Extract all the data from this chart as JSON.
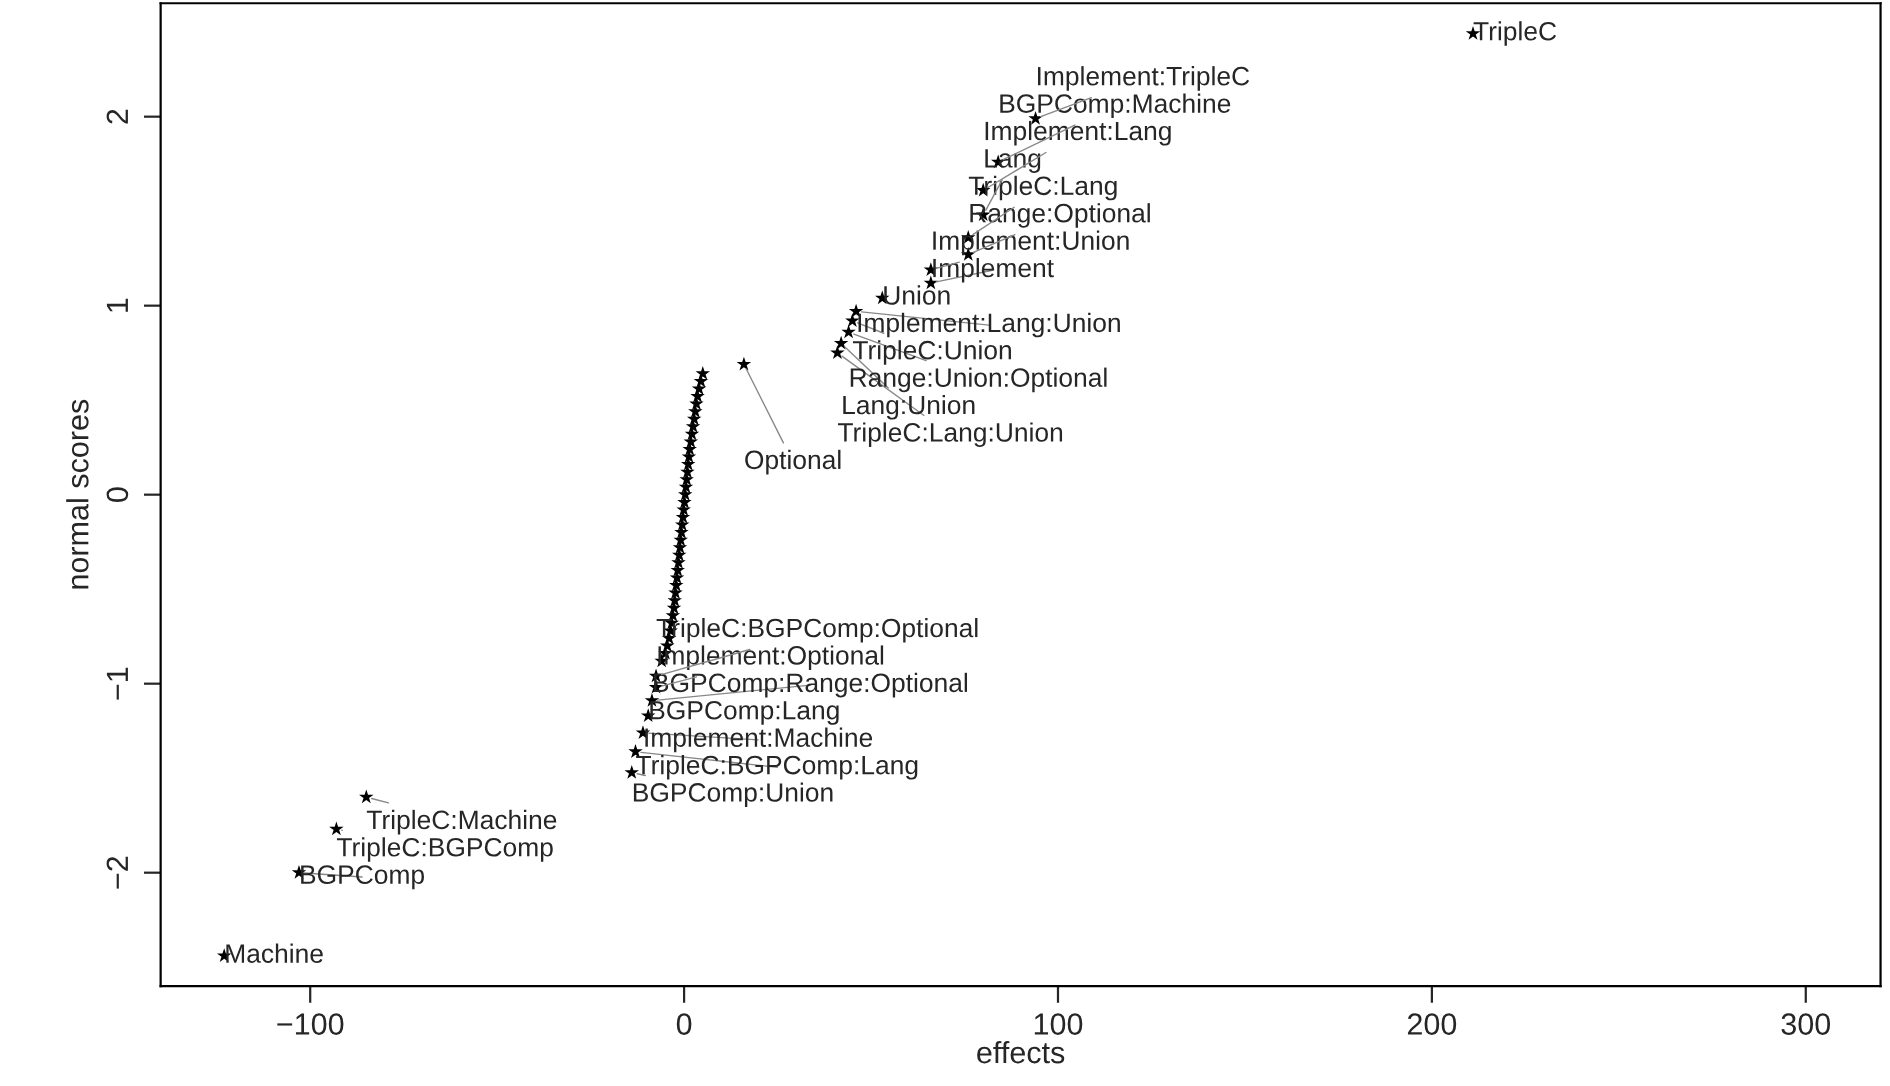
{
  "chart_data": {
    "type": "scatter",
    "xlabel": "effects",
    "ylabel": "normal scores",
    "xlim": [
      -140,
      320
    ],
    "ylim": [
      -2.6,
      2.6
    ],
    "xticks": [
      -100,
      0,
      100,
      200,
      300
    ],
    "yticks": [
      -2,
      -1,
      0,
      1,
      2
    ],
    "grid": false,
    "marker": "star",
    "series": [
      {
        "color": "#000000",
        "x": [
          -123,
          -103,
          -93,
          -85,
          -14,
          -13,
          -11,
          -9.6,
          -8.6,
          -7.5,
          -7.5,
          -6,
          -5,
          -4.5,
          -4,
          -3.6,
          -3.3,
          -3,
          -2.7,
          -2.5,
          -2.3,
          -2.1,
          -1.9,
          -1.7,
          -1.5,
          -1.3,
          -1.1,
          -0.9,
          -0.7,
          -0.5,
          -0.3,
          -0.1,
          0.1,
          0.3,
          0.5,
          0.7,
          0.9,
          1.1,
          1.3,
          1.5,
          1.8,
          2.1,
          2.4,
          2.7,
          3,
          3.3,
          3.6,
          4,
          4.5,
          5,
          16,
          41,
          42,
          44,
          45,
          46,
          53,
          66,
          66,
          76,
          76,
          80,
          80,
          84,
          94,
          211
        ],
        "values": [
          -2.44,
          -2.0,
          -1.77,
          -1.6,
          -1.47,
          -1.36,
          -1.26,
          -1.17,
          -1.09,
          -1.02,
          -0.96,
          -0.88,
          -0.84,
          -0.8,
          -0.76,
          -0.72,
          -0.68,
          -0.64,
          -0.6,
          -0.56,
          -0.52,
          -0.48,
          -0.44,
          -0.4,
          -0.36,
          -0.32,
          -0.28,
          -0.24,
          -0.2,
          -0.16,
          -0.12,
          -0.08,
          -0.04,
          0.0,
          0.04,
          0.08,
          0.12,
          0.16,
          0.2,
          0.24,
          0.28,
          0.32,
          0.36,
          0.4,
          0.44,
          0.48,
          0.52,
          0.56,
          0.6,
          0.64,
          0.69,
          0.75,
          0.8,
          0.86,
          0.92,
          0.97,
          1.04,
          1.12,
          1.19,
          1.27,
          1.36,
          1.48,
          1.61,
          1.76,
          1.99,
          2.44
        ]
      }
    ],
    "annotations": [
      {
        "text": "Machine",
        "x": -123,
        "y": -2.44
      },
      {
        "text": "BGPComp",
        "x": -103,
        "y": -2.0
      },
      {
        "text": "TripleC:BGPComp",
        "x": -93,
        "y": -1.77
      },
      {
        "text": "TripleC:Machine",
        "x": -85,
        "y": -1.6
      },
      {
        "text": "BGPComp:Union",
        "x": -14,
        "y": -1.47
      },
      {
        "text": "TripleC:BGPComp:Lang",
        "x": -13,
        "y": -1.36
      },
      {
        "text": "Implement:Machine",
        "x": -11,
        "y": -1.26
      },
      {
        "text": "BGPComp:Lang",
        "x": -9.6,
        "y": -1.17
      },
      {
        "text": "BGPComp:Range:Optional",
        "x": -8.6,
        "y": -1.09
      },
      {
        "text": "Implement:Optional",
        "x": -7.5,
        "y": -1.02
      },
      {
        "text": "TripleC:BGPComp:Optional",
        "x": -7.5,
        "y": -0.96
      },
      {
        "text": "Optional",
        "x": 16,
        "y": 0.69
      },
      {
        "text": "TripleC:Lang:Union",
        "x": 41,
        "y": 0.75
      },
      {
        "text": "Lang:Union",
        "x": 42,
        "y": 0.8
      },
      {
        "text": "Range:Union:Optional",
        "x": 44,
        "y": 0.86
      },
      {
        "text": "TripleC:Union",
        "x": 45,
        "y": 0.92
      },
      {
        "text": "Implement:Lang:Union",
        "x": 46,
        "y": 0.97
      },
      {
        "text": "Union",
        "x": 53,
        "y": 1.04
      },
      {
        "text": "Implement",
        "x": 66,
        "y": 1.12
      },
      {
        "text": "Implement:Union",
        "x": 66,
        "y": 1.19
      },
      {
        "text": "Range:Optional",
        "x": 76,
        "y": 1.27
      },
      {
        "text": "TripleC:Lang",
        "x": 76,
        "y": 1.36
      },
      {
        "text": "Lang",
        "x": 80,
        "y": 1.48
      },
      {
        "text": "Implement:Lang",
        "x": 80,
        "y": 1.61
      },
      {
        "text": "BGPComp:Machine",
        "x": 84,
        "y": 1.76
      },
      {
        "text": "Implement:TripleC",
        "x": 94,
        "y": 1.99
      },
      {
        "text": "TripleC",
        "x": 211,
        "y": 2.44
      }
    ]
  }
}
